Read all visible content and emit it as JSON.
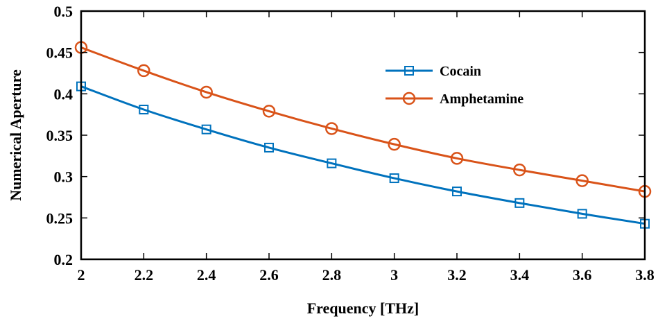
{
  "chart_data": {
    "type": "line",
    "title": "",
    "xlabel": "Frequency [THz]",
    "ylabel": "Numerical Aperture",
    "xlim": [
      2,
      3.8
    ],
    "ylim": [
      0.2,
      0.5
    ],
    "x": [
      2.0,
      2.2,
      2.4,
      2.6,
      2.8,
      3.0,
      3.2,
      3.4,
      3.6,
      3.8
    ],
    "xticks": [
      2,
      2.2,
      2.4,
      2.6,
      2.8,
      3,
      3.2,
      3.4,
      3.6,
      3.8
    ],
    "xtick_labels": [
      "2",
      "2.2",
      "2.4",
      "2.6",
      "2.8",
      "3",
      "3.2",
      "3.4",
      "3.6",
      "3.8"
    ],
    "yticks": [
      0.2,
      0.25,
      0.3,
      0.35,
      0.4,
      0.45,
      0.5
    ],
    "ytick_labels": [
      "0.2",
      "0.25",
      "0.3",
      "0.35",
      "0.4",
      "0.45",
      "0.5"
    ],
    "grid": false,
    "legend_position": "top-right",
    "series": [
      {
        "name": "Cocain",
        "marker": "square",
        "color": "#0072BD",
        "values": [
          0.409,
          0.381,
          0.357,
          0.335,
          0.316,
          0.298,
          0.282,
          0.268,
          0.255,
          0.243
        ]
      },
      {
        "name": "Amphetamine",
        "marker": "circle",
        "color": "#D95319",
        "values": [
          0.456,
          0.428,
          0.402,
          0.379,
          0.358,
          0.339,
          0.322,
          0.308,
          0.295,
          0.282
        ]
      }
    ]
  }
}
